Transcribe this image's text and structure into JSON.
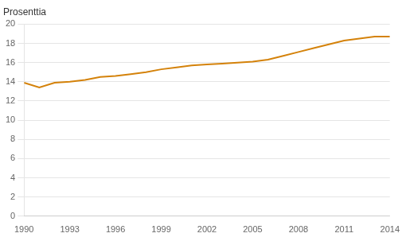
{
  "chart_data": {
    "type": "line",
    "ylabel": "Prosenttia",
    "x": [
      1990,
      1991,
      1992,
      1993,
      1994,
      1995,
      1996,
      1997,
      1998,
      1999,
      2000,
      2001,
      2002,
      2003,
      2004,
      2005,
      2006,
      2007,
      2008,
      2009,
      2010,
      2011,
      2012,
      2013,
      2014
    ],
    "values": [
      13.9,
      13.4,
      13.9,
      14.0,
      14.2,
      14.5,
      14.6,
      14.8,
      15.0,
      15.3,
      15.5,
      15.7,
      15.8,
      15.9,
      16.0,
      16.1,
      16.3,
      16.7,
      17.1,
      17.5,
      17.9,
      18.3,
      18.5,
      18.7,
      18.7
    ],
    "color": "#D4820A",
    "xlim": [
      1990,
      2014
    ],
    "xticks": [
      1990,
      1993,
      1996,
      1999,
      2002,
      2005,
      2008,
      2011,
      2014
    ],
    "ylim": [
      0,
      20
    ],
    "yticks": [
      0,
      2,
      4,
      6,
      8,
      10,
      12,
      14,
      16,
      18,
      20
    ],
    "grid": "y"
  }
}
